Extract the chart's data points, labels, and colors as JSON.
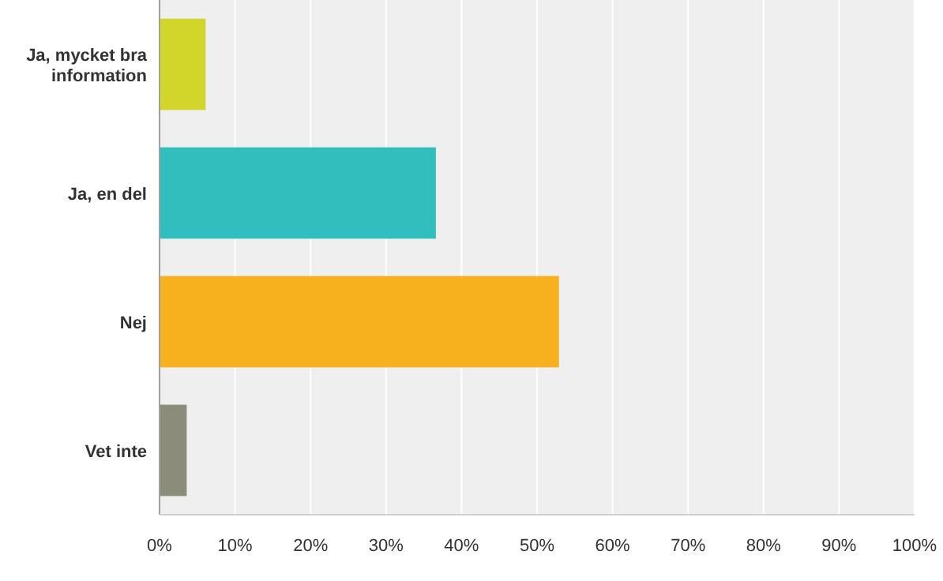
{
  "chart_data": {
    "type": "bar",
    "orientation": "horizontal",
    "categories": [
      "Ja, mycket bra information",
      "Ja, en del",
      "Nej",
      "Vet inte"
    ],
    "values": [
      6.1,
      36.6,
      52.9,
      3.6
    ],
    "colors": [
      "#d2d62a",
      "#33bebe",
      "#f7b11e",
      "#8c8c7a"
    ],
    "xlim": [
      0,
      100
    ],
    "xticks": [
      {
        "value": 0,
        "label": "0%"
      },
      {
        "value": 10,
        "label": "10%"
      },
      {
        "value": 20,
        "label": "20%"
      },
      {
        "value": 30,
        "label": "30%"
      },
      {
        "value": 40,
        "label": "40%"
      },
      {
        "value": 50,
        "label": "50%"
      },
      {
        "value": 60,
        "label": "60%"
      },
      {
        "value": 70,
        "label": "70%"
      },
      {
        "value": 80,
        "label": "80%"
      },
      {
        "value": 90,
        "label": "90%"
      },
      {
        "value": 100,
        "label": "100%"
      }
    ],
    "grid": "x"
  }
}
